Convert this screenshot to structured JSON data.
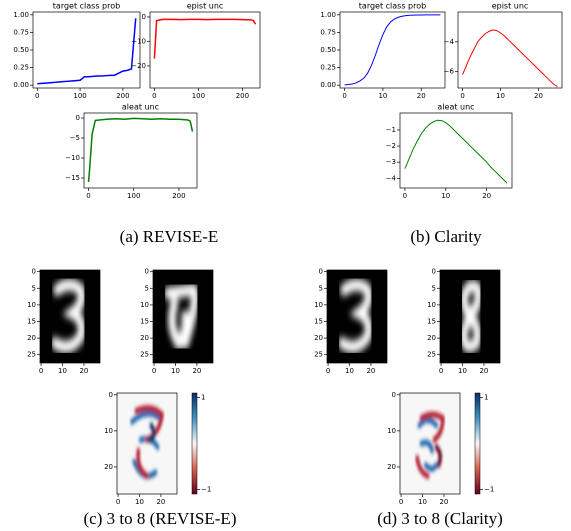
{
  "chart_data": [
    {
      "type": "line",
      "title": "target class prob",
      "color": "#0000ff",
      "x": [
        0,
        10,
        20,
        30,
        40,
        50,
        60,
        70,
        80,
        90,
        100,
        110,
        120,
        130,
        140,
        150,
        160,
        170,
        180,
        190,
        200,
        210,
        220,
        230
      ],
      "values": [
        0.02,
        0.025,
        0.03,
        0.035,
        0.04,
        0.045,
        0.05,
        0.055,
        0.06,
        0.065,
        0.07,
        0.12,
        0.12,
        0.125,
        0.13,
        0.13,
        0.135,
        0.14,
        0.14,
        0.17,
        0.2,
        0.21,
        0.23,
        0.95
      ],
      "xlim": [
        -10,
        240
      ],
      "xticks": [
        0,
        100,
        200
      ],
      "ylim": [
        -0.04,
        1.04
      ],
      "yticks": [
        {
          "value": 0,
          "label": "0.00"
        },
        0.25,
        {
          "value": 0.5,
          "label": "0.50"
        },
        0.75,
        {
          "value": 1,
          "label": "1.00"
        }
      ]
    },
    {
      "type": "line",
      "title": "epist unc",
      "color": "#ff0000",
      "x": [
        0,
        5,
        20,
        40,
        60,
        80,
        100,
        120,
        140,
        160,
        180,
        200,
        220,
        225,
        230
      ],
      "values": [
        -17,
        -1.5,
        -1,
        -1,
        -1.1,
        -1,
        -1,
        -1.1,
        -1,
        -1,
        -1,
        -1.1,
        -1.2,
        -1.5,
        -3
      ],
      "xlim": [
        -10,
        240
      ],
      "xticks": [
        0,
        100,
        200
      ],
      "ylim": [
        -29,
        2
      ],
      "yticks": [
        0,
        {
          "value": -10,
          "label": "−10"
        },
        {
          "value": -20,
          "label": "−20"
        }
      ]
    },
    {
      "type": "line",
      "title": "aleat unc",
      "color": "#008000",
      "x": [
        0,
        3,
        8,
        15,
        40,
        60,
        80,
        100,
        120,
        140,
        160,
        180,
        200,
        220,
        225,
        230
      ],
      "values": [
        -16,
        -12,
        -4,
        -0.6,
        -0.3,
        -0.2,
        -0.3,
        -0.1,
        -0.2,
        -0.3,
        -0.2,
        -0.3,
        -0.3,
        -0.5,
        -0.8,
        -3.4
      ],
      "xlim": [
        -10,
        240
      ],
      "xticks": [
        0,
        100,
        200
      ],
      "ylim": [
        -17.5,
        1.25
      ],
      "yticks": [
        0,
        {
          "value": -5,
          "label": "−5"
        },
        {
          "value": -10,
          "label": "−10"
        },
        {
          "value": -15,
          "label": "−15"
        }
      ]
    },
    {
      "type": "line",
      "title": "target class prob",
      "color": "#0000ff",
      "x": [
        0,
        1,
        2,
        3,
        4,
        5,
        6,
        7,
        8,
        9,
        10,
        11,
        12,
        13,
        14,
        15,
        16,
        17,
        18,
        19,
        20,
        21,
        22,
        23,
        24,
        25
      ],
      "values": [
        0.005,
        0.009,
        0.017,
        0.032,
        0.06,
        0.1,
        0.17,
        0.28,
        0.42,
        0.58,
        0.72,
        0.83,
        0.9,
        0.94,
        0.965,
        0.98,
        0.988,
        0.993,
        0.996,
        0.997,
        0.998,
        0.999,
        0.999,
        0.999,
        0.999,
        0.999
      ],
      "xlim": [
        -1.2,
        26.2
      ],
      "xticks": [
        0,
        10,
        20
      ],
      "ylim": [
        -0.04,
        1.04
      ],
      "yticks": [
        {
          "value": 0,
          "label": "0.00"
        },
        0.25,
        {
          "value": 0.5,
          "label": "0.50"
        },
        0.75,
        {
          "value": 1,
          "label": "1.00"
        }
      ]
    },
    {
      "type": "line",
      "title": "epist unc",
      "color": "#ff0000",
      "x": [
        0,
        1,
        2,
        3,
        4,
        5,
        6,
        7,
        8,
        9,
        10,
        11,
        12,
        13,
        14,
        15,
        16,
        17,
        18,
        19,
        20,
        21,
        22,
        23,
        24,
        25
      ],
      "values": [
        -6.2,
        -5.6,
        -5.0,
        -4.5,
        -4.0,
        -3.7,
        -3.45,
        -3.3,
        -3.2,
        -3.25,
        -3.4,
        -3.6,
        -3.85,
        -4.1,
        -4.35,
        -4.6,
        -4.85,
        -5.1,
        -5.35,
        -5.6,
        -5.85,
        -6.1,
        -6.35,
        -6.6,
        -6.85,
        -7.0
      ],
      "xlim": [
        -1.2,
        26.2
      ],
      "xticks": [
        0,
        10,
        20
      ],
      "ylim": [
        -7.1,
        -2
      ],
      "yticks": [
        {
          "value": -4,
          "label": "−4"
        },
        {
          "value": -6,
          "label": "−6"
        }
      ]
    },
    {
      "type": "line",
      "title": "aleat unc",
      "color": "#008000",
      "x": [
        0,
        1,
        2,
        3,
        4,
        5,
        6,
        7,
        8,
        9,
        10,
        11,
        12,
        13,
        14,
        15,
        16,
        17,
        18,
        19,
        20,
        21,
        22,
        23,
        24,
        25
      ],
      "values": [
        -3.4,
        -2.8,
        -2.2,
        -1.7,
        -1.25,
        -0.9,
        -0.65,
        -0.48,
        -0.4,
        -0.42,
        -0.55,
        -0.75,
        -1.0,
        -1.25,
        -1.5,
        -1.75,
        -2.0,
        -2.25,
        -2.5,
        -2.75,
        -3.0,
        -3.3,
        -3.55,
        -3.8,
        -4.05,
        -4.3
      ],
      "xlim": [
        -1.2,
        26.2
      ],
      "xticks": [
        0,
        10,
        20
      ],
      "ylim": [
        -4.6,
        0.05
      ],
      "yticks": [
        {
          "value": -1,
          "label": "−1"
        },
        {
          "value": -2,
          "label": "−2"
        },
        {
          "value": -3,
          "label": "−3"
        },
        {
          "value": -4,
          "label": "−4"
        }
      ]
    },
    {
      "type": "image",
      "xlim": [
        -0.5,
        27.5
      ],
      "xticks": [
        0,
        10,
        20
      ],
      "ylim": [
        27.5,
        -0.5
      ],
      "yticks": [
        0,
        5,
        10,
        15,
        20,
        25
      ]
    },
    {
      "type": "image",
      "xlim": [
        -0.5,
        27.5
      ],
      "xticks": [
        0,
        10,
        20
      ],
      "ylim": [
        27.5,
        -0.5
      ],
      "yticks": [
        0,
        5,
        10,
        15,
        20,
        25
      ]
    },
    {
      "type": "heatmap",
      "xlim": [
        -0.5,
        27.5
      ],
      "xticks": [
        0,
        10,
        20
      ],
      "ylim": [
        27.5,
        -0.5
      ],
      "yticks": [
        0,
        10,
        20
      ],
      "clim": [
        -1.1,
        1.1
      ],
      "colorbar_ticks": [
        1,
        {
          "value": -1,
          "label": "−1"
        }
      ]
    },
    {
      "type": "image",
      "xlim": [
        -0.5,
        27.5
      ],
      "xticks": [
        0,
        10,
        20
      ],
      "ylim": [
        27.5,
        -0.5
      ],
      "yticks": [
        0,
        5,
        10,
        15,
        20,
        25
      ]
    },
    {
      "type": "image",
      "xlim": [
        -0.5,
        27.5
      ],
      "xticks": [
        0,
        10,
        20
      ],
      "ylim": [
        27.5,
        -0.5
      ],
      "yticks": [
        0,
        5,
        10,
        15,
        20,
        25
      ]
    },
    {
      "type": "heatmap",
      "xlim": [
        -0.5,
        27.5
      ],
      "xticks": [
        0,
        10,
        20
      ],
      "ylim": [
        27.5,
        -0.5
      ],
      "yticks": [
        0,
        10,
        20
      ],
      "clim": [
        -1.1,
        1.1
      ],
      "colorbar_ticks": [
        1,
        {
          "value": -1,
          "label": "−1"
        }
      ]
    }
  ],
  "captions": [
    "(a) REVISE-E",
    "(b) Clarity",
    "(c) 3 to 8 (REVISE-E)",
    "(d) 3 to 8 (Clarity)"
  ]
}
